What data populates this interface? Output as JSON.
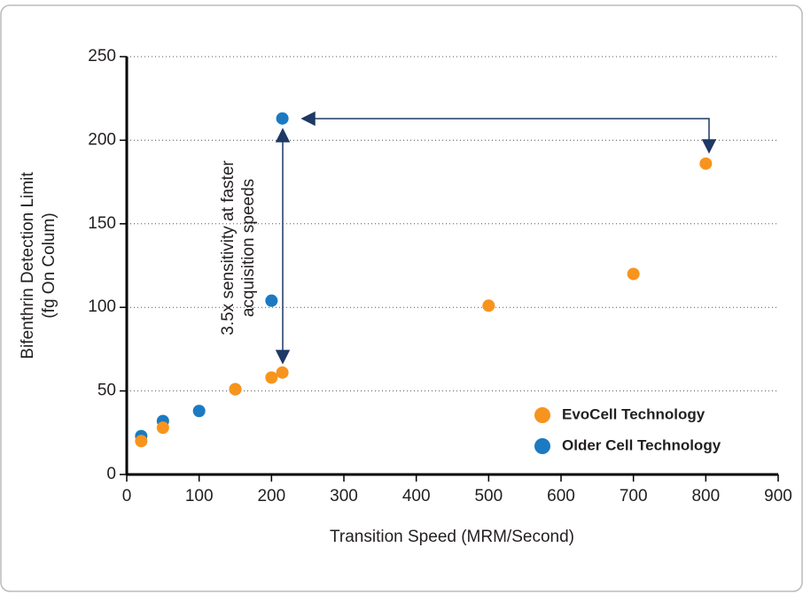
{
  "chart_data": {
    "type": "scatter",
    "x_label": "Transition Speed (MRM/Second)",
    "y_label": [
      "Bifenthrin Detection Limit",
      "(fg On Colum)"
    ],
    "annotation": [
      "3.5x sensitivity at faster",
      "acquisition speeds"
    ],
    "xlim": [
      0,
      900
    ],
    "xticks": [
      0,
      100,
      200,
      300,
      400,
      500,
      600,
      700,
      800,
      900
    ],
    "ylim": [
      0,
      250
    ],
    "yticks": [
      0,
      50,
      100,
      150,
      200,
      250
    ],
    "grid": true,
    "legend": "lower right",
    "series": [
      {
        "name": "EvoCell Technology",
        "color": "#f7941d",
        "x": [
          20,
          50,
          150,
          200,
          215,
          500,
          700,
          800
        ],
        "values": [
          20,
          28,
          51,
          58,
          61,
          101,
          120,
          186
        ]
      },
      {
        "name": "Older Cell Technology",
        "color": "#1b7ac2",
        "x": [
          20,
          50,
          100,
          150,
          200,
          215
        ],
        "values": [
          23,
          32,
          38,
          51,
          104,
          213
        ]
      }
    ]
  }
}
